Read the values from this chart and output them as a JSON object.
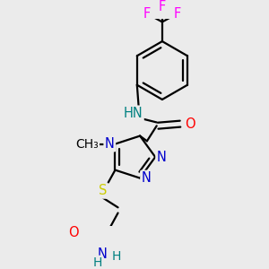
{
  "bg_color": "#ebebeb",
  "atom_colors": {
    "C": "#000000",
    "N": "#0000cc",
    "O": "#ff0000",
    "S": "#cccc00",
    "F": "#ff00ff",
    "H": "#008080"
  },
  "bond_color": "#000000",
  "bond_width": 1.6,
  "font_size": 10.5
}
